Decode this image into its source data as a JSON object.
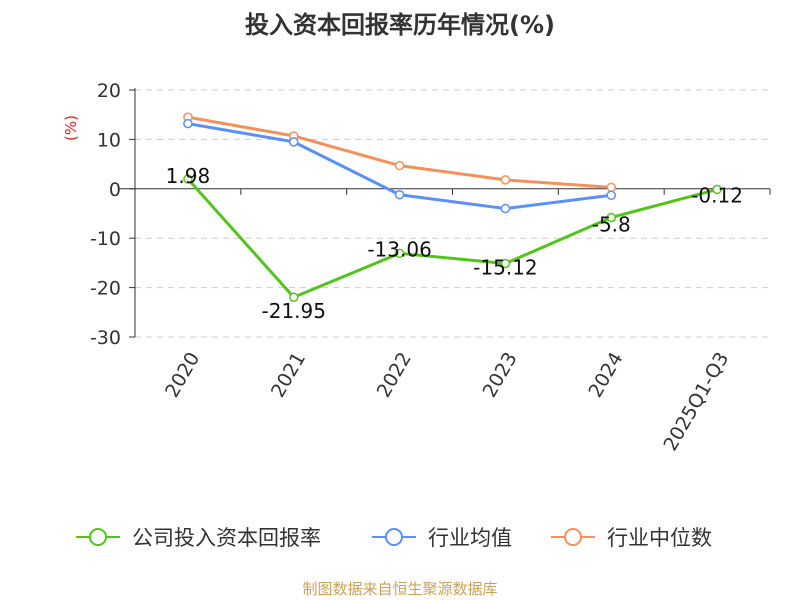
{
  "chart_data": {
    "type": "line",
    "title": "投入资本回报率历年情况(%)",
    "ylabel": "(%)",
    "xlabel": "",
    "categories": [
      "2020",
      "2021",
      "2022",
      "2023",
      "2024",
      "2025Q1-Q3"
    ],
    "ylim": [
      -30,
      20
    ],
    "yticks": [
      20,
      10,
      0,
      -10,
      -20,
      -30
    ],
    "grid": true,
    "legend_position": "bottom",
    "series": [
      {
        "name": "公司投入资本回报率",
        "color": "#52c41a",
        "values": [
          1.98,
          -21.95,
          -13.06,
          -15.12,
          -5.8,
          -0.12
        ],
        "labels": [
          "1.98",
          "-21.95",
          "-13.06",
          "-15.12",
          "-5.8",
          "-0.12"
        ]
      },
      {
        "name": "行业均值",
        "color": "#5b8ff9",
        "values": [
          13.2,
          9.5,
          -1.2,
          -4.0,
          -1.3,
          null
        ]
      },
      {
        "name": "行业中位数",
        "color": "#f5905b",
        "values": [
          14.5,
          10.7,
          4.7,
          1.8,
          0.3,
          null
        ]
      }
    ]
  },
  "source": "制图数据来自恒生聚源数据库"
}
